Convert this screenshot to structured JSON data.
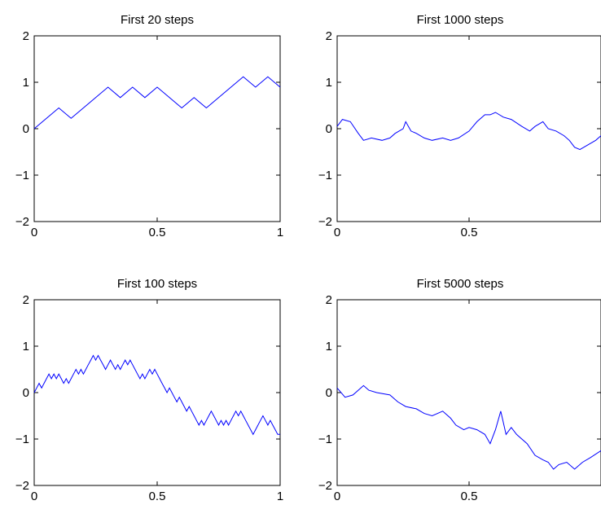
{
  "figure": {
    "line_color": "#0000ff",
    "axis_color": "#000000"
  },
  "chart_data": [
    {
      "type": "line",
      "title": "First 20 steps",
      "xlim": [
        0,
        1
      ],
      "ylim": [
        -2,
        2
      ],
      "xticks": [
        0,
        0.5,
        1
      ],
      "yticks": [
        -2,
        -1,
        0,
        1,
        2
      ],
      "xtick_labels": [
        "0",
        "0.5",
        "1"
      ],
      "ytick_labels": [
        "−2",
        "−1",
        "0",
        "1",
        "2"
      ],
      "grid": false,
      "series": [
        {
          "x": [
            0,
            0.05,
            0.1,
            0.15,
            0.2,
            0.25,
            0.3,
            0.35,
            0.4,
            0.45,
            0.5,
            0.55,
            0.6,
            0.65,
            0.7,
            0.75,
            0.8,
            0.85,
            0.9,
            0.95,
            1.0
          ],
          "y": [
            0,
            0.224,
            0.447,
            0.224,
            0.447,
            0.671,
            0.894,
            0.671,
            0.894,
            0.671,
            0.894,
            0.671,
            0.447,
            0.671,
            0.447,
            0.671,
            0.894,
            1.118,
            0.894,
            1.118,
            0.894
          ]
        }
      ]
    },
    {
      "type": "line",
      "title": "First 1000 steps",
      "xlim": [
        0,
        1
      ],
      "ylim": [
        -2,
        2
      ],
      "xticks": [
        0,
        0.5
      ],
      "yticks": [
        -2,
        -1,
        0,
        1,
        2
      ],
      "xtick_labels": [
        "0",
        "0.5"
      ],
      "ytick_labels": [
        "−2",
        "−1",
        "0",
        "1",
        "2"
      ],
      "grid": false,
      "series": [
        {
          "x": [
            0,
            0.02,
            0.05,
            0.08,
            0.1,
            0.13,
            0.17,
            0.2,
            0.22,
            0.25,
            0.26,
            0.28,
            0.3,
            0.33,
            0.36,
            0.4,
            0.43,
            0.46,
            0.5,
            0.53,
            0.56,
            0.58,
            0.6,
            0.63,
            0.66,
            0.7,
            0.73,
            0.75,
            0.78,
            0.8,
            0.83,
            0.86,
            0.88,
            0.9,
            0.92,
            0.95,
            0.98,
            1.0
          ],
          "y": [
            0.05,
            0.2,
            0.15,
            -0.1,
            -0.25,
            -0.2,
            -0.25,
            -0.2,
            -0.1,
            0.0,
            0.15,
            -0.05,
            -0.1,
            -0.2,
            -0.25,
            -0.2,
            -0.25,
            -0.2,
            -0.05,
            0.15,
            0.3,
            0.3,
            0.35,
            0.25,
            0.2,
            0.05,
            -0.05,
            0.05,
            0.15,
            0.0,
            -0.05,
            -0.15,
            -0.25,
            -0.4,
            -0.45,
            -0.35,
            -0.25,
            -0.15
          ]
        }
      ]
    },
    {
      "type": "line",
      "title": "First 100 steps",
      "xlim": [
        0,
        1
      ],
      "ylim": [
        -2,
        2
      ],
      "xticks": [
        0,
        0.5,
        1
      ],
      "yticks": [
        -2,
        -1,
        0,
        1,
        2
      ],
      "xtick_labels": [
        "0",
        "0.5",
        "1"
      ],
      "ytick_labels": [
        "−2",
        "−1",
        "0",
        "1",
        "2"
      ],
      "grid": false,
      "series": [
        {
          "x": [
            0,
            0.01,
            0.02,
            0.03,
            0.04,
            0.05,
            0.06,
            0.07,
            0.08,
            0.09,
            0.1,
            0.11,
            0.12,
            0.13,
            0.14,
            0.15,
            0.16,
            0.17,
            0.18,
            0.19,
            0.2,
            0.21,
            0.22,
            0.23,
            0.24,
            0.25,
            0.26,
            0.27,
            0.28,
            0.29,
            0.3,
            0.31,
            0.32,
            0.33,
            0.34,
            0.35,
            0.36,
            0.37,
            0.38,
            0.39,
            0.4,
            0.41,
            0.42,
            0.43,
            0.44,
            0.45,
            0.46,
            0.47,
            0.48,
            0.49,
            0.5,
            0.51,
            0.52,
            0.53,
            0.54,
            0.55,
            0.56,
            0.57,
            0.58,
            0.59,
            0.6,
            0.61,
            0.62,
            0.63,
            0.64,
            0.65,
            0.66,
            0.67,
            0.68,
            0.69,
            0.7,
            0.71,
            0.72,
            0.73,
            0.74,
            0.75,
            0.76,
            0.77,
            0.78,
            0.79,
            0.8,
            0.81,
            0.82,
            0.83,
            0.84,
            0.85,
            0.86,
            0.87,
            0.88,
            0.89,
            0.9,
            0.91,
            0.92,
            0.93,
            0.94,
            0.95,
            0.96,
            0.97,
            0.98,
            0.99,
            1.0
          ],
          "y": [
            0,
            0.1,
            0.2,
            0.1,
            0.2,
            0.3,
            0.4,
            0.3,
            0.4,
            0.3,
            0.4,
            0.3,
            0.2,
            0.3,
            0.2,
            0.3,
            0.4,
            0.5,
            0.4,
            0.5,
            0.4,
            0.5,
            0.6,
            0.7,
            0.8,
            0.7,
            0.8,
            0.7,
            0.6,
            0.5,
            0.6,
            0.7,
            0.6,
            0.5,
            0.6,
            0.5,
            0.6,
            0.7,
            0.6,
            0.7,
            0.6,
            0.5,
            0.4,
            0.3,
            0.4,
            0.3,
            0.4,
            0.5,
            0.4,
            0.5,
            0.4,
            0.3,
            0.2,
            0.1,
            0.0,
            0.1,
            0.0,
            -0.1,
            -0.2,
            -0.1,
            -0.2,
            -0.3,
            -0.4,
            -0.3,
            -0.4,
            -0.5,
            -0.6,
            -0.7,
            -0.6,
            -0.7,
            -0.6,
            -0.5,
            -0.4,
            -0.5,
            -0.6,
            -0.7,
            -0.6,
            -0.7,
            -0.6,
            -0.7,
            -0.6,
            -0.5,
            -0.4,
            -0.5,
            -0.4,
            -0.5,
            -0.6,
            -0.7,
            -0.8,
            -0.9,
            -0.8,
            -0.7,
            -0.6,
            -0.5,
            -0.6,
            -0.7,
            -0.6,
            -0.7,
            -0.8,
            -0.9,
            -0.9
          ]
        }
      ]
    },
    {
      "type": "line",
      "title": "First 5000 steps",
      "xlim": [
        0,
        1
      ],
      "ylim": [
        -2,
        2
      ],
      "xticks": [
        0,
        0.5
      ],
      "yticks": [
        -2,
        -1,
        0,
        1,
        2
      ],
      "xtick_labels": [
        "0",
        "0.5"
      ],
      "ytick_labels": [
        "−2",
        "−1",
        "0",
        "1",
        "2"
      ],
      "grid": false,
      "series": [
        {
          "x": [
            0,
            0.03,
            0.06,
            0.1,
            0.12,
            0.15,
            0.2,
            0.23,
            0.26,
            0.3,
            0.33,
            0.36,
            0.4,
            0.43,
            0.45,
            0.48,
            0.5,
            0.53,
            0.56,
            0.58,
            0.6,
            0.62,
            0.64,
            0.66,
            0.68,
            0.72,
            0.75,
            0.78,
            0.8,
            0.82,
            0.84,
            0.87,
            0.9,
            0.93,
            0.96,
            1.0
          ],
          "y": [
            0.1,
            -0.1,
            -0.05,
            0.15,
            0.05,
            0.0,
            -0.05,
            -0.2,
            -0.3,
            -0.35,
            -0.45,
            -0.5,
            -0.4,
            -0.55,
            -0.7,
            -0.8,
            -0.75,
            -0.8,
            -0.9,
            -1.1,
            -0.8,
            -0.4,
            -0.9,
            -0.75,
            -0.9,
            -1.1,
            -1.35,
            -1.45,
            -1.5,
            -1.65,
            -1.55,
            -1.5,
            -1.65,
            -1.5,
            -1.4,
            -1.25
          ]
        }
      ]
    }
  ]
}
